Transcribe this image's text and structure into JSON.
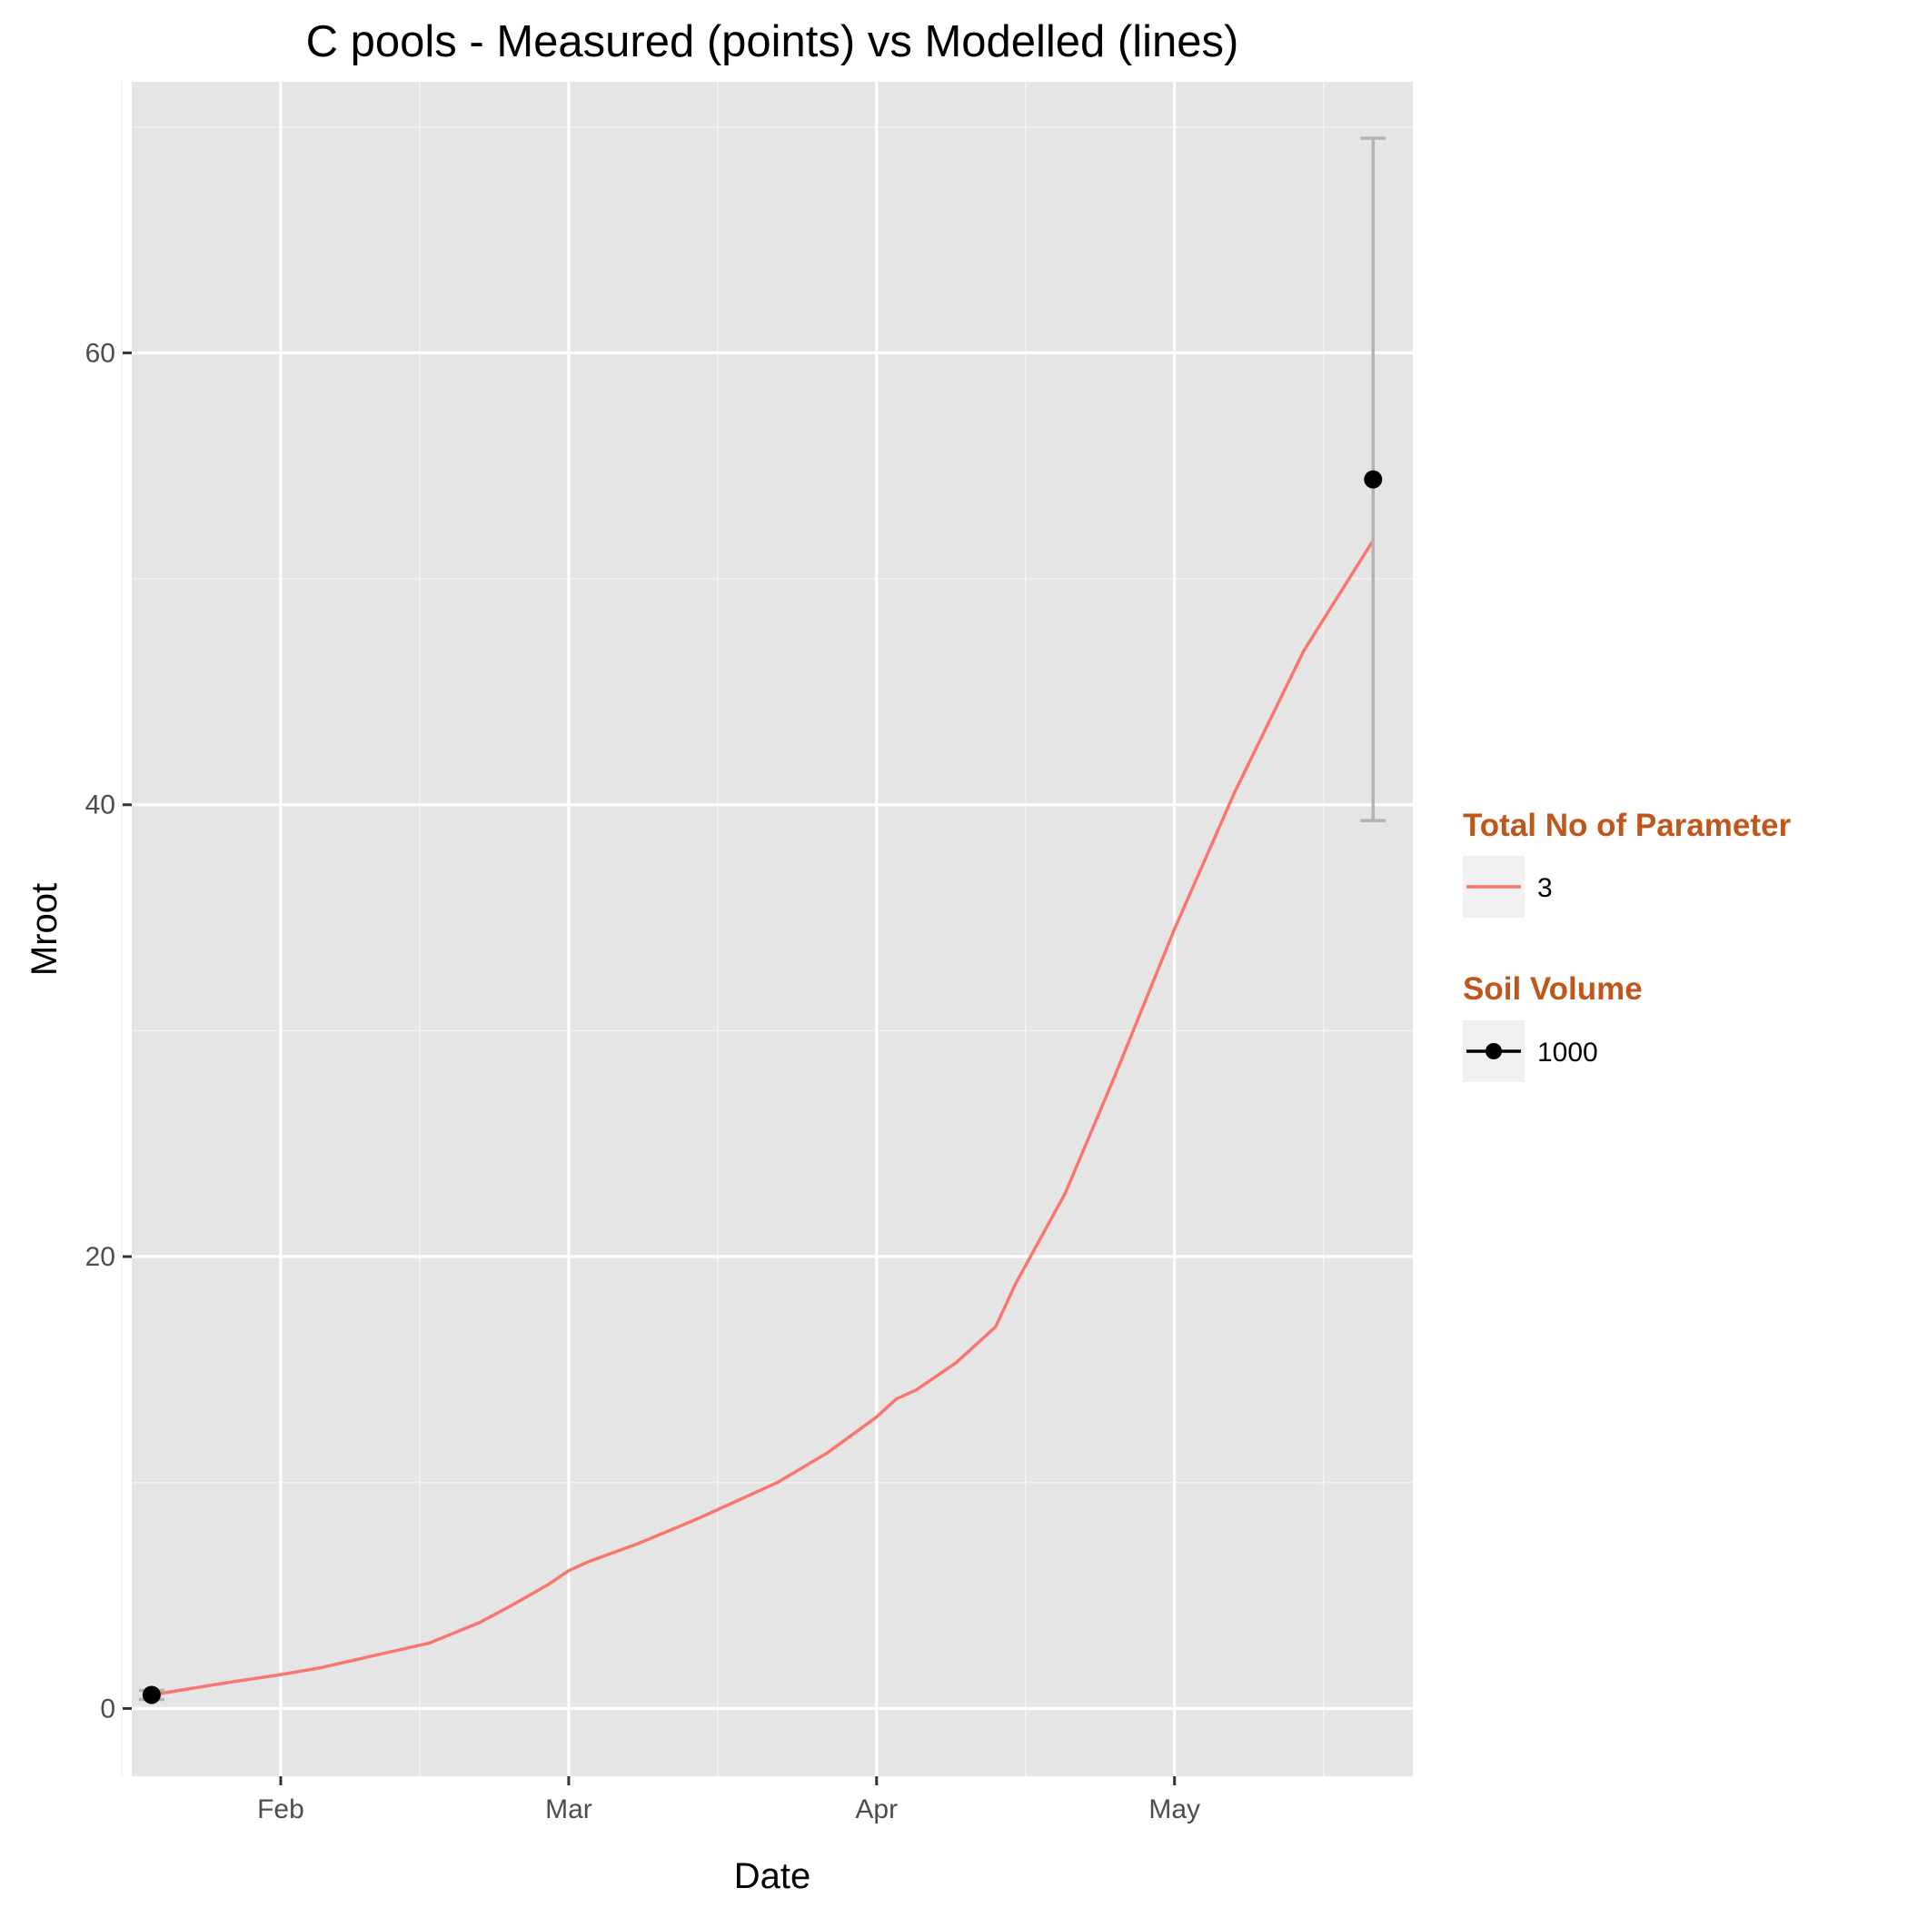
{
  "chart_data": {
    "type": "line",
    "title": "C pools - Measured (points) vs Modelled (lines)",
    "xlabel": "Date",
    "ylabel": "Mroot",
    "x_axis": {
      "kind": "date",
      "range": [
        "2016-01-17",
        "2016-05-25"
      ],
      "ticks": [
        {
          "date": "2016-02-01",
          "label": "Feb"
        },
        {
          "date": "2016-03-01",
          "label": "Mar"
        },
        {
          "date": "2016-04-01",
          "label": "Apr"
        },
        {
          "date": "2016-05-01",
          "label": "May"
        }
      ],
      "minor_ticks": [
        "2016-01-16",
        "2016-02-15",
        "2016-03-16",
        "2016-04-16",
        "2016-05-16"
      ]
    },
    "y_axis": {
      "range": [
        -3,
        72
      ],
      "ticks": [
        0,
        20,
        40,
        60
      ],
      "minor_ticks": [
        10,
        30,
        50,
        70
      ]
    },
    "grid": true,
    "series": [
      {
        "kind": "line",
        "color": "#F8766D",
        "points": [
          [
            "2016-01-19",
            0.6
          ],
          [
            "2016-01-26",
            1.1
          ],
          [
            "2016-02-01",
            1.5
          ],
          [
            "2016-02-05",
            1.8
          ],
          [
            "2016-02-11",
            2.4
          ],
          [
            "2016-02-16",
            2.9
          ],
          [
            "2016-02-21",
            3.8
          ],
          [
            "2016-02-24",
            4.5
          ],
          [
            "2016-02-28",
            5.5
          ],
          [
            "2016-03-01",
            6.1
          ],
          [
            "2016-03-03",
            6.5
          ],
          [
            "2016-03-08",
            7.3
          ],
          [
            "2016-03-14",
            8.4
          ],
          [
            "2016-03-17",
            9.0
          ],
          [
            "2016-03-22",
            10.0
          ],
          [
            "2016-03-27",
            11.3
          ],
          [
            "2016-04-01",
            12.9
          ],
          [
            "2016-04-03",
            13.7
          ],
          [
            "2016-04-05",
            14.1
          ],
          [
            "2016-04-09",
            15.3
          ],
          [
            "2016-04-13",
            16.9
          ],
          [
            "2016-04-15",
            18.8
          ],
          [
            "2016-04-20",
            22.8
          ],
          [
            "2016-04-25",
            28.0
          ],
          [
            "2016-05-01",
            34.5
          ],
          [
            "2016-05-07",
            40.5
          ],
          [
            "2016-05-14",
            46.8
          ],
          [
            "2016-05-21",
            51.7
          ]
        ]
      },
      {
        "kind": "points",
        "color": "#000000",
        "points": [
          {
            "date": "2016-01-19",
            "y": 0.6,
            "ymin": 0.4,
            "ymax": 0.8
          },
          {
            "date": "2016-05-21",
            "y": 54.4,
            "ymin": 39.3,
            "ymax": 69.5
          }
        ]
      }
    ],
    "legend": {
      "placement": "right",
      "groups": [
        {
          "title": "Total No of Parameter",
          "label": "3",
          "key": "line",
          "color": "#F8766D"
        },
        {
          "title": "Soil Volume",
          "label": "1000",
          "key": "point-line",
          "color": "#000000"
        }
      ],
      "title_color": "#C0561C"
    },
    "colors": {
      "panel_background": "#E5E5E5",
      "grid_major": "#FFFFFF",
      "grid_minor": "#F2F2F2",
      "errorbar": "#B3B3B3",
      "legend_key_background": "#F0F0F0"
    }
  }
}
